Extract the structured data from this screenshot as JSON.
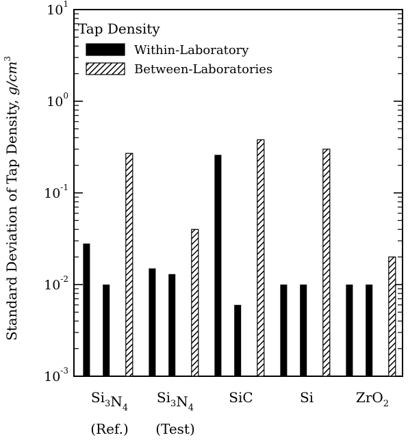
{
  "chart_data": {
    "type": "bar",
    "yscale": "log",
    "ylim": [
      0.001,
      10
    ],
    "yticks": [
      {
        "base": "10",
        "exp": "1"
      },
      {
        "base": "10",
        "exp": "0"
      },
      {
        "base": "10",
        "exp": "-1"
      },
      {
        "base": "10",
        "exp": "-2"
      },
      {
        "base": "10",
        "exp": "-3"
      }
    ],
    "ylabel": {
      "main": "Standard Deviation of Tap Density, ",
      "unit": "g/cm",
      "unit_exp": "3"
    },
    "legend": {
      "title": "Tap Density",
      "placement": "top-left",
      "items": [
        {
          "label": "Within-Laboratory",
          "style": "solid"
        },
        {
          "label": "Between-Laboratories",
          "style": "hatched"
        }
      ]
    },
    "categories": [
      {
        "parts": [
          {
            "t": "Si"
          },
          {
            "t": "3",
            "sub": true
          },
          {
            "t": "N"
          },
          {
            "t": "4",
            "sub": true
          }
        ],
        "line2": "(Ref.)"
      },
      {
        "parts": [
          {
            "t": "Si"
          },
          {
            "t": "3",
            "sub": true
          },
          {
            "t": "N"
          },
          {
            "t": "4",
            "sub": true
          }
        ],
        "line2": "(Test)"
      },
      {
        "parts": [
          {
            "t": "SiC"
          }
        ],
        "line2": ""
      },
      {
        "parts": [
          {
            "t": "Si"
          }
        ],
        "line2": ""
      },
      {
        "parts": [
          {
            "t": "ZrO"
          },
          {
            "t": "2",
            "sub": true
          }
        ],
        "line2": ""
      }
    ],
    "series": [
      {
        "name": "Within-Laboratory",
        "style": "solid",
        "values": [
          [
            0.028,
            0.01
          ],
          [
            0.015,
            0.013
          ],
          [
            0.26,
            0.006
          ],
          [
            0.01,
            0.01
          ],
          [
            0.01,
            0.01
          ]
        ]
      },
      {
        "name": "Between-Laboratories",
        "style": "hatched",
        "values": [
          0.27,
          0.04,
          0.38,
          0.3,
          0.02
        ]
      }
    ]
  }
}
